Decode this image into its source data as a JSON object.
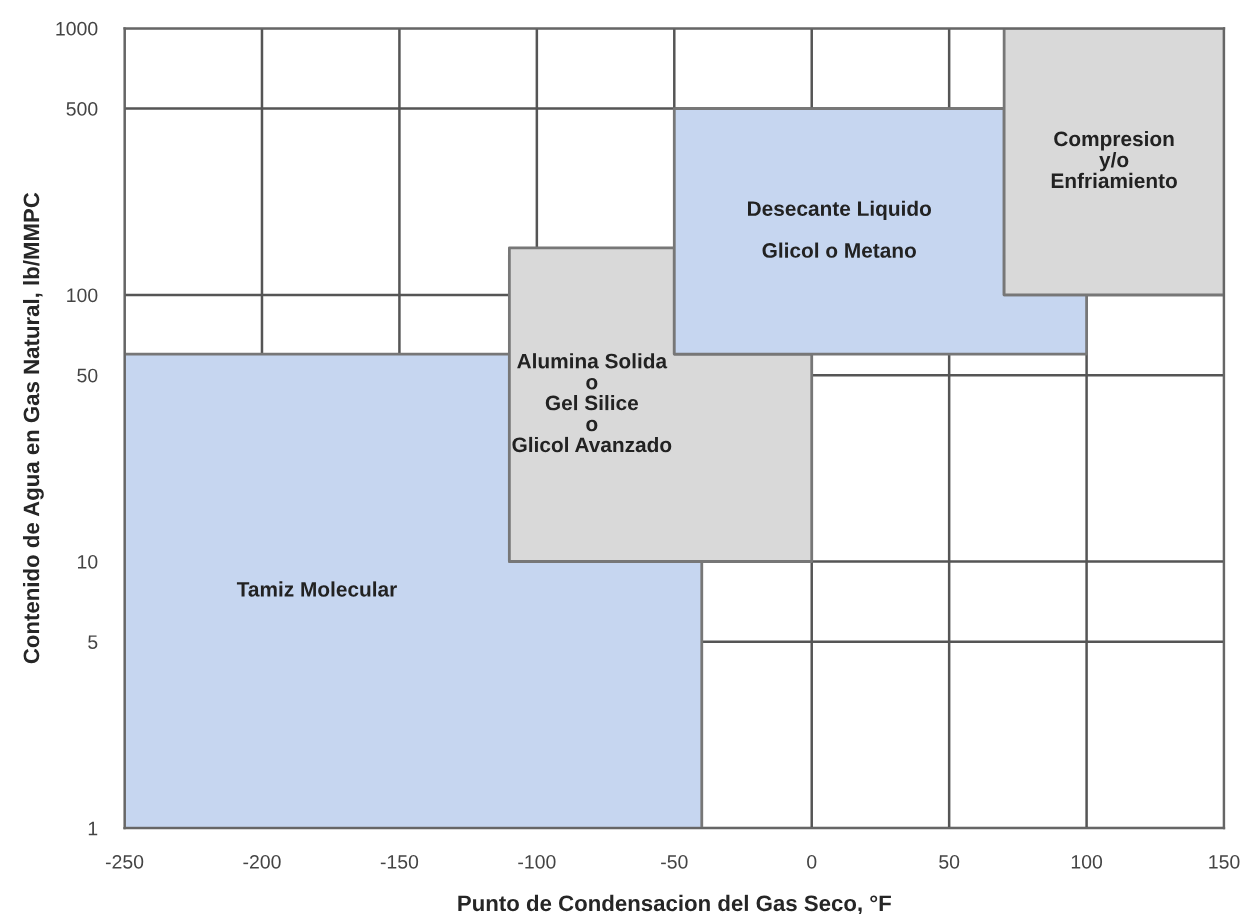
{
  "chart_data": {
    "type": "area",
    "xlabel": "Punto de Condensacion del Gas Seco, °F",
    "ylabel": "Contenido de Agua en Gas Natural, lb/MMPC",
    "series": [
      {
        "name": "Tamiz Molecular",
        "color": "#c6d6f0",
        "x": [
          -250,
          -250,
          -110,
          -110,
          -40,
          -40
        ],
        "values": [
          1,
          60,
          60,
          10,
          10,
          1
        ]
      },
      {
        "name": "Alumina Solida\no\nGel Silice\no\nGlicol Avanzado",
        "color": "#d9d9d9",
        "x": [
          -110,
          -110,
          -50,
          -50,
          0,
          0
        ],
        "values": [
          10,
          150,
          150,
          60,
          60,
          10
        ]
      },
      {
        "name": "Desecante Liquido\n\nGlicol o Metano",
        "color": "#c6d6f0",
        "x": [
          -50,
          -50,
          70,
          70,
          100,
          100
        ],
        "values": [
          60,
          500,
          500,
          100,
          100,
          60
        ]
      },
      {
        "name": "Compresion\ny/o\nEnfriamiento",
        "color": "#d9d9d9",
        "x": [
          70,
          70,
          150,
          150
        ],
        "values": [
          100,
          1000,
          1000,
          100
        ]
      }
    ],
    "xlim": [
      -250,
      150
    ],
    "xticks": [
      -250,
      -200,
      -150,
      -100,
      -50,
      0,
      50,
      100,
      150
    ],
    "ylim": [
      1,
      1000
    ],
    "yticks": [
      1,
      5,
      10,
      50,
      100,
      500,
      1000
    ],
    "log": "y",
    "grid": true,
    "legend": false
  }
}
